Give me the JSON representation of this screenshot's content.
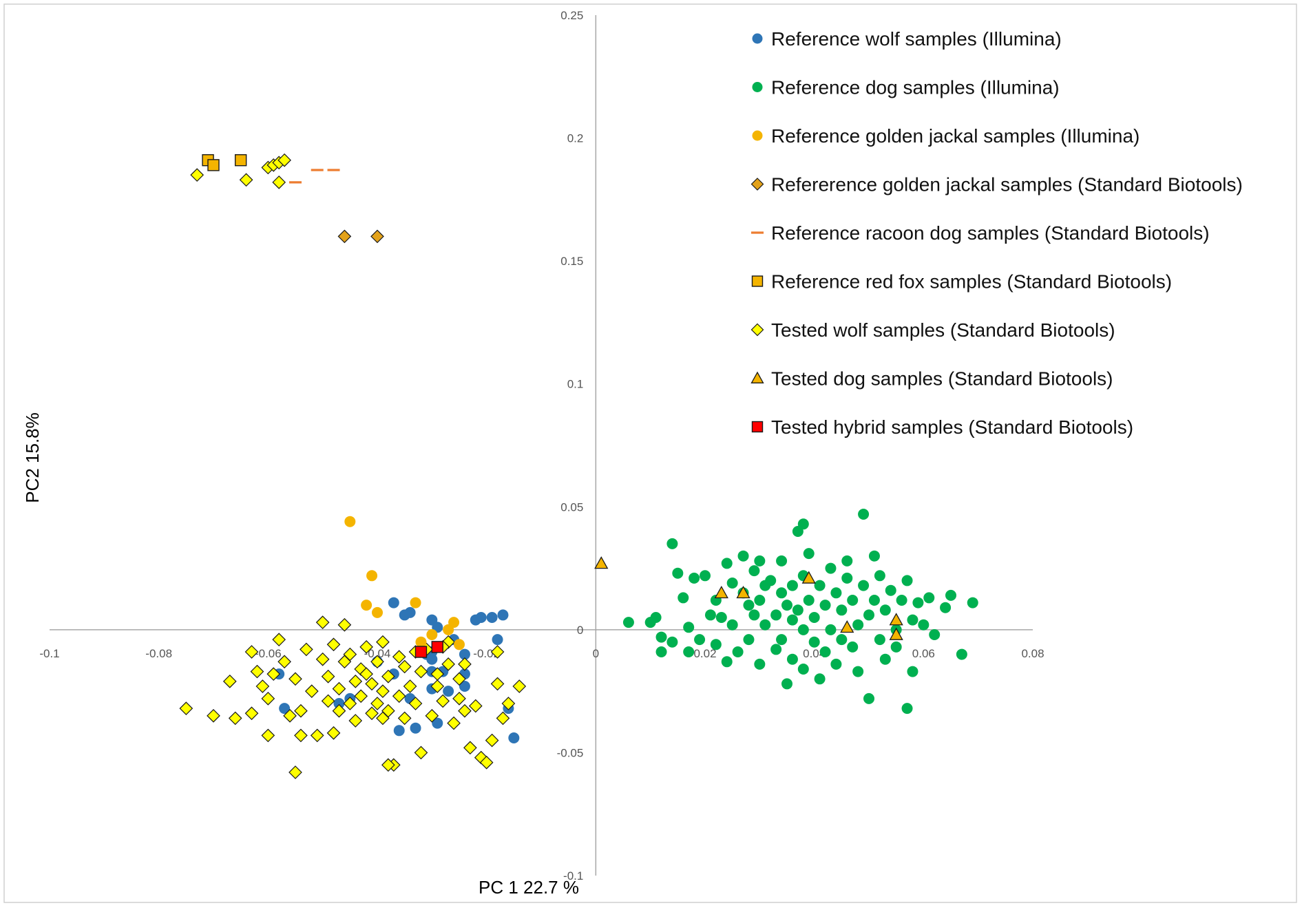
{
  "chart_data": {
    "type": "scatter",
    "xlabel": "PC 1 22.7 %",
    "ylabel": "PC2 15.8%",
    "xlim": [
      -0.1,
      0.08
    ],
    "ylim": [
      -0.1,
      0.25
    ],
    "x_ticks": [
      "-0.1",
      "-0.08",
      "-0.06",
      "-0.04",
      "-0.02",
      "0",
      "0.02",
      "0.04",
      "0.06",
      "0.08"
    ],
    "x_tick_values": [
      -0.1,
      -0.08,
      -0.06,
      -0.04,
      -0.02,
      0,
      0.02,
      0.04,
      0.06,
      0.08
    ],
    "y_ticks": [
      "0.25",
      "0.2",
      "0.15",
      "0.1",
      "0.05",
      "0",
      "-0.05",
      "-0.1"
    ],
    "y_tick_values": [
      0.25,
      0.2,
      0.15,
      0.1,
      0.05,
      0,
      -0.05,
      -0.1
    ],
    "legend_position": "top-right",
    "grid": false,
    "series": [
      {
        "name": "Reference wolf samples (Illumina)",
        "marker": "circle",
        "color": "#2E75B6",
        "points": [
          [
            -0.058,
            -0.018
          ],
          [
            -0.057,
            -0.032
          ],
          [
            -0.047,
            -0.03
          ],
          [
            -0.045,
            -0.028
          ],
          [
            -0.04,
            -0.013
          ],
          [
            -0.037,
            -0.018
          ],
          [
            -0.037,
            0.011
          ],
          [
            -0.035,
            0.006
          ],
          [
            -0.034,
            0.007
          ],
          [
            -0.034,
            -0.028
          ],
          [
            -0.036,
            -0.041
          ],
          [
            -0.033,
            -0.04
          ],
          [
            -0.031,
            -0.01
          ],
          [
            -0.03,
            -0.012
          ],
          [
            -0.03,
            -0.017
          ],
          [
            -0.03,
            -0.024
          ],
          [
            -0.029,
            -0.038
          ],
          [
            -0.03,
            0.004
          ],
          [
            -0.028,
            -0.017
          ],
          [
            -0.03,
            -0.009
          ],
          [
            -0.027,
            -0.025
          ],
          [
            -0.024,
            -0.018
          ],
          [
            -0.024,
            -0.023
          ],
          [
            -0.022,
            0.004
          ],
          [
            -0.021,
            0.005
          ],
          [
            -0.018,
            -0.004
          ],
          [
            -0.019,
            0.005
          ],
          [
            -0.016,
            -0.032
          ],
          [
            -0.015,
            -0.044
          ],
          [
            -0.017,
            0.006
          ],
          [
            -0.026,
            -0.004
          ],
          [
            -0.029,
            0.001
          ],
          [
            -0.024,
            -0.01
          ]
        ]
      },
      {
        "name": "Reference dog samples (Illumina)",
        "marker": "circle",
        "color": "#00B050",
        "points": [
          [
            0.014,
            0.035
          ],
          [
            0.015,
            0.023
          ],
          [
            0.016,
            0.013
          ],
          [
            0.017,
            0.001
          ],
          [
            0.014,
            -0.005
          ],
          [
            0.017,
            -0.009
          ],
          [
            0.019,
            -0.004
          ],
          [
            0.018,
            0.021
          ],
          [
            0.02,
            0.022
          ],
          [
            0.021,
            0.006
          ],
          [
            0.022,
            0.012
          ],
          [
            0.022,
            -0.006
          ],
          [
            0.023,
            0.005
          ],
          [
            0.024,
            -0.013
          ],
          [
            0.024,
            0.027
          ],
          [
            0.025,
            0.019
          ],
          [
            0.025,
            0.002
          ],
          [
            0.026,
            -0.009
          ],
          [
            0.027,
            0.03
          ],
          [
            0.027,
            0.015
          ],
          [
            0.028,
            0.01
          ],
          [
            0.028,
            -0.004
          ],
          [
            0.029,
            0.024
          ],
          [
            0.029,
            0.006
          ],
          [
            0.03,
            0.028
          ],
          [
            0.03,
            0.012
          ],
          [
            0.03,
            -0.014
          ],
          [
            0.031,
            0.002
          ],
          [
            0.031,
            0.018
          ],
          [
            0.032,
            0.02
          ],
          [
            0.033,
            0.006
          ],
          [
            0.033,
            -0.008
          ],
          [
            0.034,
            0.015
          ],
          [
            0.034,
            0.028
          ],
          [
            0.034,
            -0.004
          ],
          [
            0.035,
            0.01
          ],
          [
            0.035,
            -0.022
          ],
          [
            0.036,
            0.004
          ],
          [
            0.036,
            0.018
          ],
          [
            0.036,
            -0.012
          ],
          [
            0.037,
            0.04
          ],
          [
            0.037,
            0.008
          ],
          [
            0.038,
            0.043
          ],
          [
            0.038,
            0.022
          ],
          [
            0.038,
            0.0
          ],
          [
            0.038,
            -0.016
          ],
          [
            0.039,
            0.031
          ],
          [
            0.039,
            0.012
          ],
          [
            0.04,
            -0.005
          ],
          [
            0.04,
            0.005
          ],
          [
            0.041,
            0.018
          ],
          [
            0.041,
            -0.02
          ],
          [
            0.042,
            0.01
          ],
          [
            0.042,
            -0.009
          ],
          [
            0.043,
            0.025
          ],
          [
            0.043,
            0.0
          ],
          [
            0.044,
            0.015
          ],
          [
            0.044,
            -0.014
          ],
          [
            0.045,
            0.008
          ],
          [
            0.045,
            -0.004
          ],
          [
            0.046,
            0.021
          ],
          [
            0.046,
            0.028
          ],
          [
            0.047,
            0.012
          ],
          [
            0.047,
            -0.007
          ],
          [
            0.048,
            0.002
          ],
          [
            0.048,
            -0.017
          ],
          [
            0.049,
            0.047
          ],
          [
            0.049,
            0.018
          ],
          [
            0.05,
            0.006
          ],
          [
            0.05,
            -0.028
          ],
          [
            0.051,
            0.03
          ],
          [
            0.051,
            0.012
          ],
          [
            0.052,
            -0.004
          ],
          [
            0.052,
            0.022
          ],
          [
            0.053,
            0.008
          ],
          [
            0.053,
            -0.012
          ],
          [
            0.054,
            0.016
          ],
          [
            0.055,
            0.0
          ],
          [
            0.055,
            -0.007
          ],
          [
            0.056,
            0.012
          ],
          [
            0.057,
            0.02
          ],
          [
            0.057,
            -0.032
          ],
          [
            0.058,
            0.004
          ],
          [
            0.058,
            -0.017
          ],
          [
            0.059,
            0.011
          ],
          [
            0.06,
            0.002
          ],
          [
            0.061,
            0.013
          ],
          [
            0.062,
            -0.002
          ],
          [
            0.064,
            0.009
          ],
          [
            0.065,
            0.014
          ],
          [
            0.067,
            -0.01
          ],
          [
            0.069,
            0.011
          ],
          [
            0.006,
            0.003
          ],
          [
            0.01,
            0.003
          ],
          [
            0.011,
            0.005
          ],
          [
            0.012,
            -0.003
          ],
          [
            0.012,
            -0.009
          ]
        ]
      },
      {
        "name": "Reference golden jackal samples (Illumina)",
        "marker": "circle",
        "color": "#F4B400",
        "points": [
          [
            -0.045,
            0.044
          ],
          [
            -0.041,
            0.022
          ],
          [
            -0.042,
            0.01
          ],
          [
            -0.04,
            0.007
          ],
          [
            -0.033,
            0.011
          ],
          [
            -0.032,
            -0.005
          ],
          [
            -0.026,
            0.003
          ],
          [
            -0.025,
            -0.006
          ],
          [
            -0.027,
            0.0
          ],
          [
            -0.03,
            -0.002
          ]
        ]
      },
      {
        "name": "Refererence golden jackal samples (Standard Biotools)",
        "marker": "diamond",
        "color": "#E3A21A",
        "points": [
          [
            -0.046,
            0.16
          ],
          [
            -0.04,
            0.16
          ]
        ]
      },
      {
        "name": "Reference racoon dog samples (Standard Biotools)",
        "marker": "dash",
        "color": "#ED7D31",
        "points": [
          [
            -0.055,
            0.182
          ],
          [
            -0.051,
            0.187
          ],
          [
            -0.048,
            0.187
          ]
        ]
      },
      {
        "name": "Reference red fox samples (Standard Biotools)",
        "marker": "square",
        "color": "#F4B400",
        "points": [
          [
            -0.071,
            0.191
          ],
          [
            -0.07,
            0.189
          ],
          [
            -0.065,
            0.191
          ]
        ]
      },
      {
        "name": "Tested wolf samples (Standard Biotools)",
        "marker": "diamond",
        "color": "#FFFF00",
        "points": [
          [
            -0.073,
            0.185
          ],
          [
            -0.064,
            0.183
          ],
          [
            -0.06,
            0.188
          ],
          [
            -0.059,
            0.189
          ],
          [
            -0.058,
            0.19
          ],
          [
            -0.057,
            0.191
          ],
          [
            -0.058,
            0.182
          ],
          [
            -0.075,
            -0.032
          ],
          [
            -0.07,
            -0.035
          ],
          [
            -0.066,
            -0.036
          ],
          [
            -0.063,
            -0.034
          ],
          [
            -0.063,
            -0.009
          ],
          [
            -0.062,
            -0.017
          ],
          [
            -0.061,
            -0.023
          ],
          [
            -0.06,
            -0.028
          ],
          [
            -0.059,
            -0.018
          ],
          [
            -0.06,
            -0.043
          ],
          [
            -0.058,
            -0.004
          ],
          [
            -0.057,
            -0.013
          ],
          [
            -0.056,
            -0.035
          ],
          [
            -0.055,
            -0.058
          ],
          [
            -0.055,
            -0.02
          ],
          [
            -0.054,
            -0.033
          ],
          [
            -0.053,
            -0.008
          ],
          [
            -0.052,
            -0.025
          ],
          [
            -0.051,
            -0.043
          ],
          [
            -0.05,
            -0.012
          ],
          [
            -0.05,
            0.003
          ],
          [
            -0.049,
            -0.029
          ],
          [
            -0.049,
            -0.019
          ],
          [
            -0.048,
            -0.006
          ],
          [
            -0.047,
            -0.033
          ],
          [
            -0.047,
            -0.024
          ],
          [
            -0.046,
            -0.013
          ],
          [
            -0.046,
            0.002
          ],
          [
            -0.045,
            -0.03
          ],
          [
            -0.045,
            -0.01
          ],
          [
            -0.044,
            -0.037
          ],
          [
            -0.044,
            -0.021
          ],
          [
            -0.043,
            -0.016
          ],
          [
            -0.043,
            -0.027
          ],
          [
            -0.042,
            -0.007
          ],
          [
            -0.041,
            -0.034
          ],
          [
            -0.041,
            -0.022
          ],
          [
            -0.04,
            -0.03
          ],
          [
            -0.04,
            -0.013
          ],
          [
            -0.039,
            -0.025
          ],
          [
            -0.039,
            -0.005
          ],
          [
            -0.038,
            -0.033
          ],
          [
            -0.038,
            -0.019
          ],
          [
            -0.037,
            -0.055
          ],
          [
            -0.036,
            -0.027
          ],
          [
            -0.036,
            -0.011
          ],
          [
            -0.035,
            -0.036
          ],
          [
            -0.034,
            -0.023
          ],
          [
            -0.033,
            -0.03
          ],
          [
            -0.032,
            -0.017
          ],
          [
            -0.032,
            -0.05
          ],
          [
            -0.031,
            -0.008
          ],
          [
            -0.03,
            -0.035
          ],
          [
            -0.029,
            -0.023
          ],
          [
            -0.028,
            -0.029
          ],
          [
            -0.027,
            -0.014
          ],
          [
            -0.026,
            -0.038
          ],
          [
            -0.025,
            -0.02
          ],
          [
            -0.024,
            -0.033
          ],
          [
            -0.023,
            -0.048
          ],
          [
            -0.022,
            -0.031
          ],
          [
            -0.021,
            -0.052
          ],
          [
            -0.02,
            -0.054
          ],
          [
            -0.019,
            -0.045
          ],
          [
            -0.018,
            -0.022
          ],
          [
            -0.018,
            -0.009
          ],
          [
            -0.017,
            -0.036
          ],
          [
            -0.016,
            -0.03
          ],
          [
            -0.014,
            -0.023
          ],
          [
            -0.038,
            -0.055
          ],
          [
            -0.048,
            -0.042
          ],
          [
            -0.067,
            -0.021
          ],
          [
            -0.054,
            -0.043
          ],
          [
            -0.042,
            -0.018
          ],
          [
            -0.039,
            -0.036
          ],
          [
            -0.035,
            -0.015
          ],
          [
            -0.033,
            -0.009
          ],
          [
            -0.029,
            -0.018
          ],
          [
            -0.027,
            -0.005
          ],
          [
            -0.025,
            -0.028
          ],
          [
            -0.024,
            -0.014
          ],
          [
            -0.028,
            -0.007
          ]
        ]
      },
      {
        "name": "Tested dog samples (Standard Biotools)",
        "marker": "triangle",
        "color": "#F4B400",
        "points": [
          [
            0.001,
            0.027
          ],
          [
            0.023,
            0.015
          ],
          [
            0.027,
            0.015
          ],
          [
            0.039,
            0.021
          ],
          [
            0.046,
            0.001
          ],
          [
            0.055,
            0.004
          ],
          [
            0.055,
            -0.002
          ]
        ]
      },
      {
        "name": "Tested hybrid samples (Standard Biotools)",
        "marker": "square",
        "color": "#FF0000",
        "points": [
          [
            -0.032,
            -0.009
          ],
          [
            -0.029,
            -0.007
          ]
        ]
      }
    ]
  }
}
